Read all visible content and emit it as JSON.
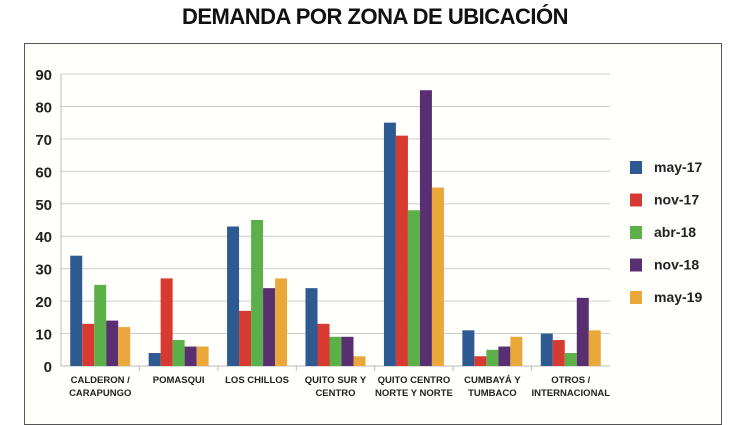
{
  "chart_data": {
    "type": "bar",
    "title": "DEMANDA POR ZONA DE UBICACIÓN",
    "xlabel": "",
    "ylabel": "",
    "ylim": [
      0,
      90
    ],
    "yticks": [
      0,
      10,
      20,
      30,
      40,
      50,
      60,
      70,
      80,
      90
    ],
    "grid": true,
    "legend_position": "right",
    "categories": [
      [
        "CALDERON /",
        "CARAPUNGO"
      ],
      [
        "POMASQUI"
      ],
      [
        "LOS CHILLOS"
      ],
      [
        "QUITO SUR Y",
        "CENTRO"
      ],
      [
        "QUITO CENTRO",
        "NORTE Y NORTE"
      ],
      [
        "CUMBAYÁ Y",
        "TUMBACO"
      ],
      [
        "OTROS /",
        "INTERNACIONAL"
      ]
    ],
    "series": [
      {
        "name": "may-17",
        "color": "#2e5a92",
        "values": [
          34,
          4,
          43,
          24,
          75,
          11,
          10
        ]
      },
      {
        "name": "nov-17",
        "color": "#d63a31",
        "values": [
          13,
          27,
          17,
          13,
          71,
          3,
          8
        ]
      },
      {
        "name": "abr-18",
        "color": "#5cb04a",
        "values": [
          25,
          8,
          45,
          9,
          48,
          5,
          4
        ]
      },
      {
        "name": "nov-18",
        "color": "#5a2f72",
        "values": [
          14,
          6,
          24,
          9,
          85,
          6,
          21
        ]
      },
      {
        "name": "may-19",
        "color": "#eaa83a",
        "values": [
          12,
          6,
          27,
          3,
          55,
          9,
          11
        ]
      }
    ]
  }
}
